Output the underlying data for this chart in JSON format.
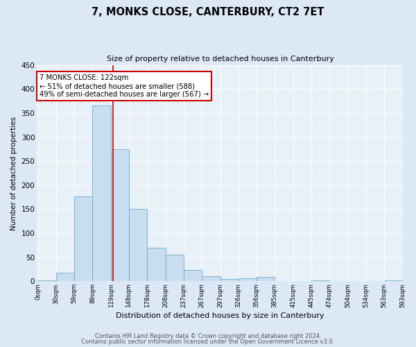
{
  "title": "7, MONKS CLOSE, CANTERBURY, CT2 7ET",
  "subtitle": "Size of property relative to detached houses in Canterbury",
  "xlabel": "Distribution of detached houses by size in Canterbury",
  "ylabel": "Number of detached properties",
  "bar_color": "#c8ddf0",
  "bar_edge_color": "#6aaed6",
  "background_color": "#e8f0f8",
  "fig_background_color": "#dce8f5",
  "grid_color": "#ffffff",
  "property_line_x": 122,
  "property_line_color": "#cc0000",
  "annotation_text": "7 MONKS CLOSE: 122sqm\n← 51% of detached houses are smaller (588)\n49% of semi-detached houses are larger (567) →",
  "annotation_box_edgecolor": "#cc0000",
  "bin_edges": [
    0,
    30,
    59,
    89,
    119,
    148,
    178,
    208,
    237,
    267,
    297,
    326,
    356,
    385,
    415,
    445,
    474,
    504,
    534,
    563,
    593
  ],
  "bin_labels": [
    "0sqm",
    "30sqm",
    "59sqm",
    "89sqm",
    "119sqm",
    "148sqm",
    "178sqm",
    "208sqm",
    "237sqm",
    "267sqm",
    "297sqm",
    "326sqm",
    "356sqm",
    "385sqm",
    "415sqm",
    "445sqm",
    "474sqm",
    "504sqm",
    "534sqm",
    "563sqm",
    "593sqm"
  ],
  "counts": [
    2,
    18,
    176,
    365,
    275,
    151,
    70,
    55,
    24,
    10,
    5,
    6,
    9,
    0,
    0,
    2,
    0,
    0,
    0,
    2
  ],
  "ylim": [
    0,
    450
  ],
  "yticks": [
    0,
    50,
    100,
    150,
    200,
    250,
    300,
    350,
    400,
    450
  ],
  "footnote1": "Contains HM Land Registry data © Crown copyright and database right 2024.",
  "footnote2": "Contains public sector information licensed under the Open Government Licence v3.0."
}
